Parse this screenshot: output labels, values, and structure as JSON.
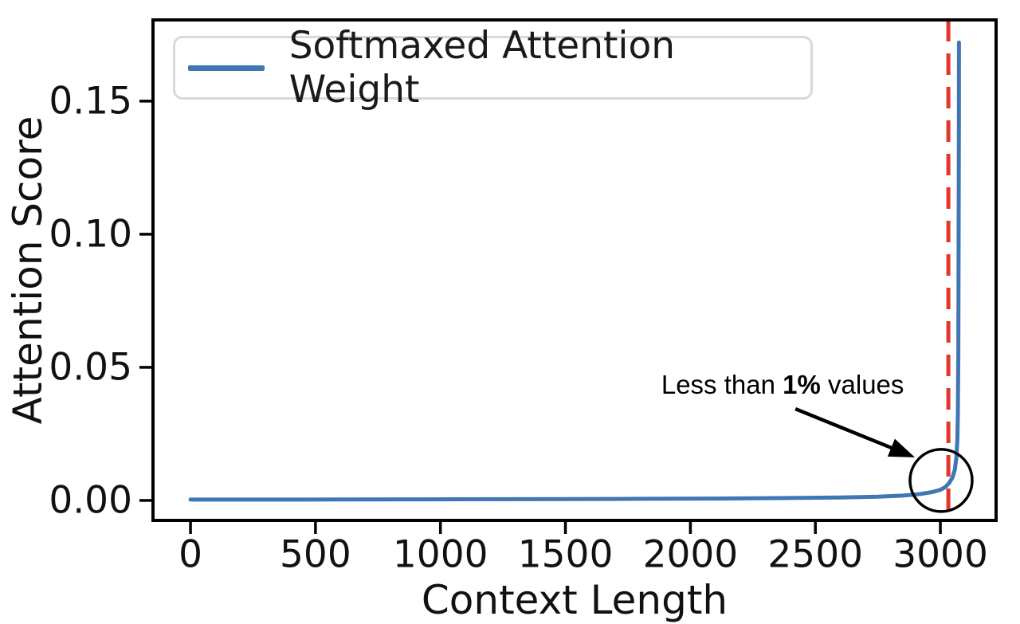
{
  "chart_data": {
    "type": "line",
    "title": "",
    "xlabel": "Context Length",
    "ylabel": "Attention Score",
    "xlim": [
      -150,
      3223
    ],
    "ylim": [
      -0.0075,
      0.1805
    ],
    "grid": false,
    "xticks": {
      "values": [
        0,
        500,
        1000,
        1500,
        2000,
        2500,
        3000
      ],
      "labels": [
        "0",
        "500",
        "1000",
        "1500",
        "2000",
        "2500",
        "3000"
      ]
    },
    "yticks": {
      "values": [
        0,
        0.05,
        0.1,
        0.15
      ],
      "labels": [
        "0.00",
        "0.05",
        "0.10",
        "0.15"
      ]
    },
    "legend": {
      "position": "upper left",
      "label": "Softmaxed Attention Weight"
    },
    "series": [
      {
        "name": "Softmaxed Attention Weight",
        "color": "#3f76b3",
        "x": [
          0,
          300,
          600,
          900,
          1200,
          1500,
          1800,
          2100,
          2400,
          2600,
          2750,
          2850,
          2920,
          2970,
          3000,
          3020,
          3035,
          3048,
          3058,
          3064,
          3068,
          3070,
          3072,
          3073,
          3074,
          3074.5
        ],
        "y": [
          0.0003,
          0.0003,
          0.00035,
          0.0004,
          0.00045,
          0.0005,
          0.0006,
          0.0007,
          0.0009,
          0.0011,
          0.0014,
          0.0018,
          0.0024,
          0.0032,
          0.004,
          0.005,
          0.0065,
          0.0085,
          0.0115,
          0.016,
          0.023,
          0.032,
          0.055,
          0.09,
          0.14,
          0.172
        ]
      }
    ],
    "vline": {
      "x": 3032,
      "style": "dashed",
      "color": "#e3362b"
    },
    "annotation": {
      "text_prefix": "Less than ",
      "text_bold": "1%",
      "text_suffix": " values",
      "text_at": [
        2369,
        0.0434
      ],
      "arrow_from": [
        2420,
        0.0344
      ],
      "arrow_to": [
        2898,
        0.0162
      ],
      "circle_at": [
        3003,
        0.0075
      ],
      "circle_radius_px": 39
    },
    "colors": {
      "axes": "#000000",
      "text": "#111111",
      "line": "#3f76b3",
      "vline": "#e3362b",
      "annotation": "#000000"
    }
  }
}
